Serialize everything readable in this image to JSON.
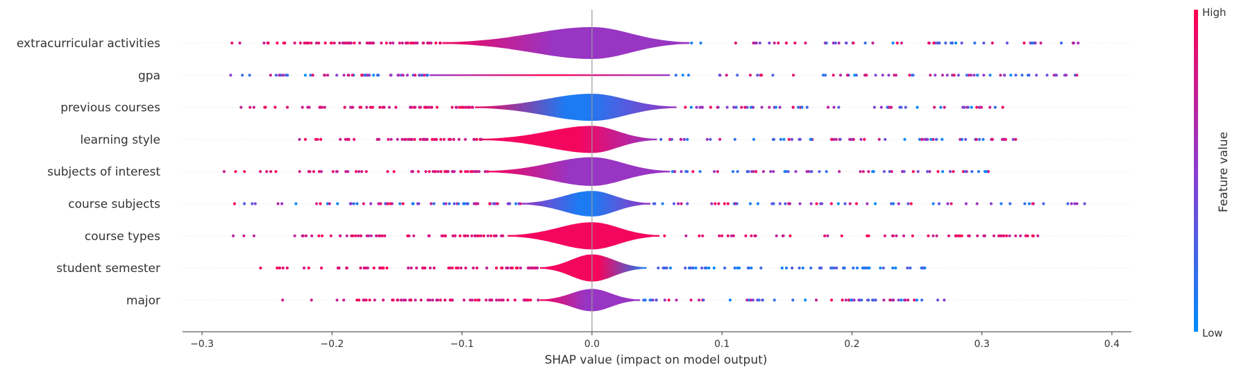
{
  "chart_data": {
    "type": "violin-summary",
    "xlabel": "SHAP value (impact on model output)",
    "xlim": [
      -0.315,
      0.415
    ],
    "xticks": [
      -0.3,
      -0.2,
      -0.1,
      0.0,
      0.1,
      0.2,
      0.3,
      0.4
    ],
    "xtick_labels": [
      "−0.3",
      "−0.2",
      "−0.1",
      "0.0",
      "0.1",
      "0.2",
      "0.3",
      "0.4"
    ],
    "grid": false,
    "zero_line": true,
    "colorbar": {
      "label": "Feature value",
      "high_label": "High",
      "low_label": "Low",
      "low_color": "#008bfb",
      "high_color": "#ff0051"
    },
    "features": [
      {
        "name": "extracurricular activities",
        "min": -0.277,
        "max": 0.374,
        "q1": -0.035,
        "q3": 0.05,
        "width": 1.0,
        "violin_left": -0.115,
        "violin_right": 0.075,
        "colors": {
          "left_tail": "high",
          "center": "mixed",
          "right_tail": "mixed"
        }
      },
      {
        "name": "gpa",
        "min": -0.278,
        "max": 0.373,
        "q1": -0.06,
        "q3": 0.05,
        "width": 0.05,
        "violin_left": -0.125,
        "violin_right": 0.06,
        "colors": {
          "left_tail": "mixed",
          "center": "high",
          "right_tail": "mixed"
        }
      },
      {
        "name": "previous courses",
        "min": -0.27,
        "max": 0.316,
        "q1": -0.03,
        "q3": 0.035,
        "width": 0.85,
        "violin_left": -0.09,
        "violin_right": 0.065,
        "colors": {
          "left_tail": "high",
          "center": "low",
          "right_tail": "mixed"
        }
      },
      {
        "name": "learning style",
        "min": -0.225,
        "max": 0.326,
        "q1": -0.02,
        "q3": 0.03,
        "width": 0.85,
        "violin_left": -0.085,
        "violin_right": 0.05,
        "colors": {
          "left_tail": "high",
          "center": "high",
          "right_tail": "mixed"
        }
      },
      {
        "name": "subjects of interest",
        "min": -0.283,
        "max": 0.305,
        "q1": -0.04,
        "q3": 0.04,
        "width": 0.9,
        "violin_left": -0.08,
        "violin_right": 0.06,
        "colors": {
          "left_tail": "high",
          "center": "mixed",
          "right_tail": "mixed"
        }
      },
      {
        "name": "course subjects",
        "min": -0.275,
        "max": 0.379,
        "q1": -0.025,
        "q3": 0.025,
        "width": 0.8,
        "violin_left": -0.055,
        "violin_right": 0.045,
        "colors": {
          "left_tail": "mixed",
          "center": "low",
          "right_tail": "mixed"
        }
      },
      {
        "name": "course types",
        "min": -0.276,
        "max": 0.343,
        "q1": -0.02,
        "q3": 0.035,
        "width": 0.85,
        "violin_left": -0.065,
        "violin_right": 0.052,
        "colors": {
          "left_tail": "high",
          "center": "high",
          "right_tail": "high"
        }
      },
      {
        "name": "student semester",
        "min": -0.255,
        "max": 0.256,
        "q1": -0.015,
        "q3": 0.03,
        "width": 0.85,
        "violin_left": -0.04,
        "violin_right": 0.042,
        "colors": {
          "left_tail": "high",
          "center": "high",
          "right_tail": "low"
        }
      },
      {
        "name": "major",
        "min": -0.238,
        "max": 0.271,
        "q1": -0.015,
        "q3": 0.025,
        "width": 0.7,
        "violin_left": -0.04,
        "violin_right": 0.037,
        "colors": {
          "left_tail": "high",
          "center": "mixed",
          "right_tail": "mixed"
        }
      }
    ]
  }
}
